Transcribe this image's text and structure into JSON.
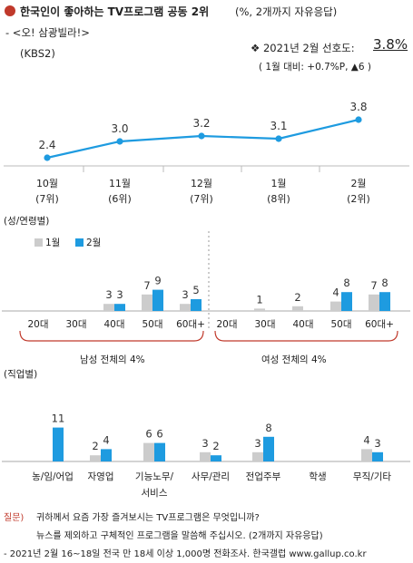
{
  "header": {
    "title": "한국인이 좋아하는 TV프로그램 공동 2위",
    "title_note": "(%, 2개까지 자유응답)",
    "program": "- <오! 삼광빌라!>",
    "channel": "(KBS2)",
    "pref_label": "❖  2021년 2월 선호도:",
    "pref_value": "3.8%",
    "change": "( 1월 대비: +0.7%P, ▲6 )"
  },
  "trend_chart": {
    "type": "line",
    "x": [
      "10월",
      "11월",
      "12월",
      "1월",
      "2월"
    ],
    "ranks": [
      "(7위)",
      "(6위)",
      "(7위)",
      "(8위)",
      "(2위)"
    ],
    "values": [
      2.4,
      3.0,
      3.2,
      3.1,
      3.8
    ],
    "value_labels": [
      "2.4",
      "3.0",
      "3.2",
      "3.1",
      "3.8"
    ]
  },
  "section_labels": {
    "age": "(성/연령별)",
    "job": "(직업별)",
    "male_total": "남성 전체의 4%",
    "female_total": "여성 전체의 4%"
  },
  "legend": {
    "jan": "1월",
    "feb": "2월"
  },
  "colors": {
    "jan": "#cccccc",
    "feb": "#1e9be0",
    "line": "#1e9be0",
    "accent": "#c0392b"
  },
  "chart_data": [
    {
      "type": "line",
      "categories": [
        "10월",
        "11월",
        "12월",
        "1월",
        "2월"
      ],
      "values": [
        2.4,
        3.0,
        3.2,
        3.1,
        3.8
      ]
    },
    {
      "type": "bar",
      "categories": [
        "20대",
        "30대",
        "40대",
        "50대",
        "60대+",
        "20대",
        "30대",
        "40대",
        "50대",
        "60대+"
      ],
      "series": [
        {
          "name": "1월",
          "values": [
            0,
            0,
            3,
            7,
            3,
            0,
            1,
            2,
            4,
            7
          ],
          "labels": [
            "",
            "",
            "3",
            "7",
            "3",
            "",
            "1",
            "2",
            "4",
            "7"
          ]
        },
        {
          "name": "2월",
          "values": [
            0,
            0,
            3,
            9,
            5,
            0,
            0,
            0,
            8,
            8
          ],
          "labels": [
            "",
            "",
            "3",
            "9",
            "5",
            "",
            "",
            "",
            "8",
            "8"
          ]
        }
      ]
    },
    {
      "type": "bar",
      "categories": [
        "농/임/어업",
        "자영업",
        "기능노무/서비스",
        "사무/관리",
        "전업주부",
        "학생",
        "무직/기타"
      ],
      "category_lines": [
        [
          "농/임/어업"
        ],
        [
          "자영업"
        ],
        [
          "기능노무/",
          "서비스"
        ],
        [
          "사무/관리"
        ],
        [
          "전업주부"
        ],
        [
          "학생"
        ],
        [
          "무직/기타"
        ]
      ],
      "series": [
        {
          "name": "1월",
          "values": [
            0,
            2,
            6,
            3,
            3,
            0,
            4
          ],
          "labels": [
            "",
            "2",
            "6",
            "3",
            "3",
            "",
            "4"
          ]
        },
        {
          "name": "2월",
          "values": [
            11,
            4,
            6,
            2,
            8,
            0,
            3
          ],
          "labels": [
            "11",
            "4",
            "6",
            "2",
            "8",
            "",
            "3"
          ]
        }
      ]
    }
  ],
  "footer": {
    "q_label": "질문)",
    "q_line1": "귀하께서 요즘 가장 즐겨보시는 TV프로그램은 무엇입니까?",
    "q_line2": "뉴스를 제외하고 구체적인 프로그램을 말씀해 주십시오. (2개까지 자유응답)",
    "source": "- 2021년 2월 16~18일 전국 만 18세 이상 1,000명 전화조사. 한국갤럽 www.gallup.co.kr"
  }
}
